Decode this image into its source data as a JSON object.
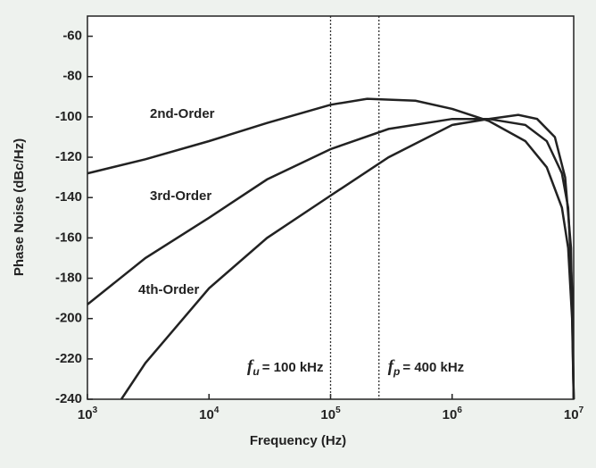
{
  "chart_data": {
    "type": "line",
    "xlabel": "Frequency (Hz)",
    "ylabel": "Phase Noise (dBc/Hz)",
    "xscale": "log",
    "xlim": [
      1000,
      10000000
    ],
    "ylim": [
      -240,
      -50
    ],
    "xticks": [
      {
        "value": 1000,
        "label": "10",
        "exponent": "3"
      },
      {
        "value": 10000,
        "label": "10",
        "exponent": "4"
      },
      {
        "value": 100000,
        "label": "10",
        "exponent": "5"
      },
      {
        "value": 1000000,
        "label": "10",
        "exponent": "6"
      },
      {
        "value": 10000000,
        "label": "10",
        "exponent": "7"
      }
    ],
    "yticks": [
      -60,
      -80,
      -100,
      -120,
      -140,
      -160,
      -180,
      -200,
      -220,
      -240
    ],
    "series": [
      {
        "name": "2nd-Order",
        "color": "#222222",
        "x": [
          1000,
          3000,
          10000,
          30000,
          100000,
          200000,
          500000,
          1000000,
          2000000,
          4000000,
          6000000,
          8000000,
          9000000,
          9700000,
          10000000
        ],
        "values": [
          -128,
          -121,
          -112,
          -103,
          -94,
          -91,
          -92,
          -96,
          -102,
          -112,
          -125,
          -145,
          -165,
          -200,
          -240
        ]
      },
      {
        "name": "3rd-Order",
        "color": "#222222",
        "x": [
          1000,
          3000,
          10000,
          30000,
          100000,
          300000,
          1000000,
          2000000,
          4000000,
          6000000,
          8000000,
          9000000,
          9700000,
          10000000
        ],
        "values": [
          -193,
          -170,
          -150,
          -131,
          -116,
          -106,
          -101,
          -101,
          -104,
          -112,
          -128,
          -145,
          -185,
          -240
        ]
      },
      {
        "name": "4th-Order",
        "color": "#222222",
        "x": [
          1900,
          3000,
          10000,
          30000,
          100000,
          300000,
          1000000,
          2000000,
          3500000,
          5000000,
          7000000,
          8500000,
          9500000,
          10000000
        ],
        "values": [
          -240,
          -222,
          -185,
          -160,
          -139,
          -120,
          -104,
          -101,
          -99,
          -101,
          -110,
          -130,
          -165,
          -240
        ]
      }
    ],
    "markers": [
      {
        "x": 100000,
        "symbol": "f",
        "subscript": "u",
        "text": "= 100 kHz"
      },
      {
        "x": 250000,
        "symbol": "f",
        "subscript": "p",
        "text": "= 400 kHz"
      }
    ]
  }
}
